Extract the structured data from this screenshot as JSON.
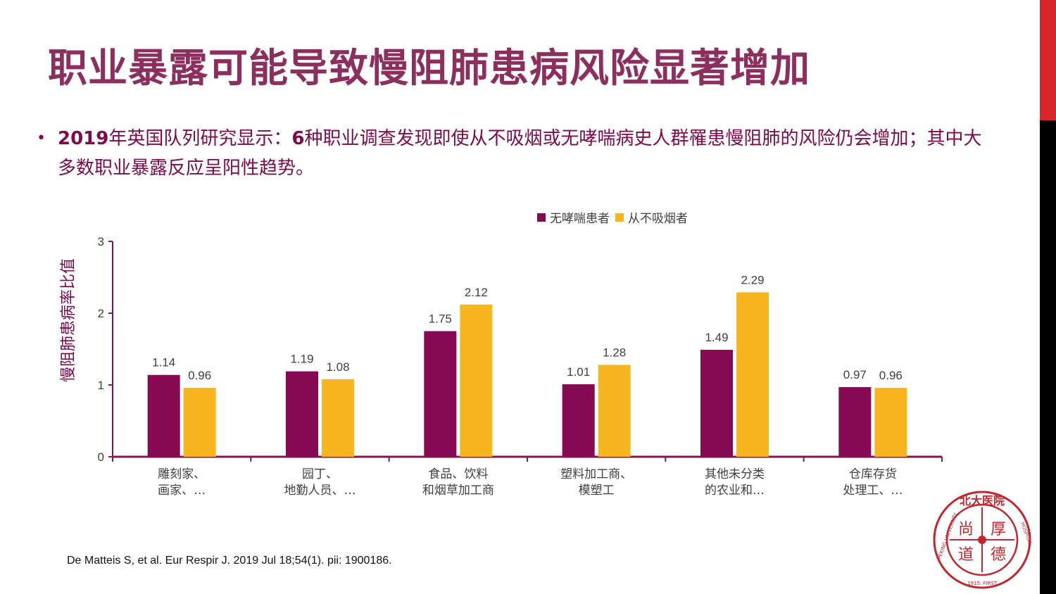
{
  "title": "职业暴露可能导致慢阻肺患病风险显著增加",
  "bullet": {
    "bold_year": "2019",
    "text1": "年英国队列研究显示：",
    "bold_num": "6",
    "text2": "种职业调查发现即使从不吸烟或无哮喘病史人群罹患慢阻肺的风险仍会增加；其中大多数职业暴露反应呈阳性趋势。"
  },
  "citation": "De Matteis S, et al. Eur Respir J. 2019 Jul 18;54(1). pii: 1900186.",
  "logo": {
    "top_text": "北大医院",
    "center_chars": [
      "尚",
      "厚",
      "道",
      "德"
    ],
    "ring_text": "PEKING UNIVERSITY FIRST HOSPITAL .1915."
  },
  "colors": {
    "title": "#8c2f5f",
    "accent_red": "#d9262b",
    "series1": "#850a52",
    "series2": "#f7b520"
  },
  "chart_data": {
    "type": "bar",
    "ylabel": "慢阻肺患病率比值",
    "ylim": [
      0,
      3
    ],
    "yticks": [
      0,
      1,
      2,
      3
    ],
    "categories": [
      [
        "雕刻家、",
        "画家、…"
      ],
      [
        "园丁、",
        "地勤人员、…"
      ],
      [
        "食品、饮料",
        "和烟草加工商"
      ],
      [
        "塑料加工商、",
        "模塑工"
      ],
      [
        "其他未分类",
        "的农业和…"
      ],
      [
        "仓库存货",
        "处理工、…"
      ]
    ],
    "series": [
      {
        "name": "无哮喘患者",
        "color": "#850a52",
        "values": [
          1.14,
          1.19,
          1.75,
          1.01,
          1.49,
          0.97
        ],
        "labels": [
          "1.14",
          "1.19",
          "1.75",
          "1.01",
          "1.49",
          "0.97"
        ]
      },
      {
        "name": "从不吸烟者",
        "color": "#f7b520",
        "values": [
          0.96,
          1.08,
          2.12,
          1.28,
          2.29,
          0.96
        ],
        "labels": [
          "0.96",
          "1.08",
          "2.12",
          "1.28",
          "2.29",
          "0.96"
        ]
      }
    ],
    "legend_position": "top-center"
  }
}
